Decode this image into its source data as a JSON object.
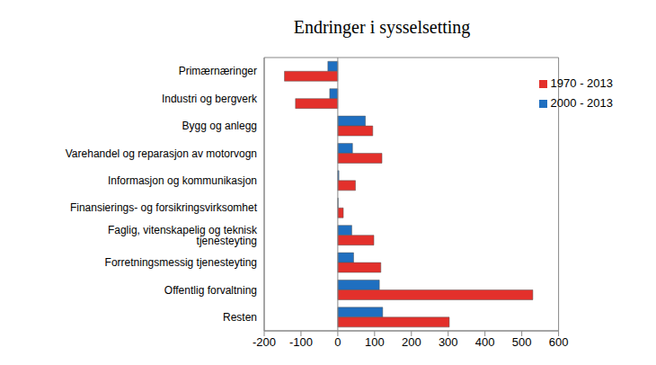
{
  "chart_data": {
    "type": "bar",
    "title": "Endringer i sysselsetting",
    "orientation": "horizontal",
    "categories": [
      "Primærnæringer",
      "Industri og bergverk",
      "Bygg og anlegg",
      "Varehandel og reparasjon av motorvogn",
      "Informasjon og kommunikasjon",
      "Finansierings- og forsikringsvirksomhet",
      "Faglig, vitenskapelig og teknisk tjenesteyting",
      "Forretningsmessig tjenesteyting",
      "Offentlig forvaltning",
      "Resten"
    ],
    "series": [
      {
        "name": "2000 - 2013",
        "color": "#1f6fc0",
        "values": [
          -27,
          -22,
          75,
          40,
          3,
          1,
          38,
          43,
          113,
          122
        ]
      },
      {
        "name": "1970 - 2013",
        "color": "#e3302b",
        "values": [
          -145,
          -115,
          95,
          120,
          48,
          15,
          98,
          117,
          530,
          303
        ]
      }
    ],
    "xlim": [
      -200,
      600
    ],
    "xticks": [
      -200,
      -100,
      0,
      100,
      200,
      300,
      400,
      500,
      600
    ],
    "grid": false,
    "legend": "upper right"
  }
}
